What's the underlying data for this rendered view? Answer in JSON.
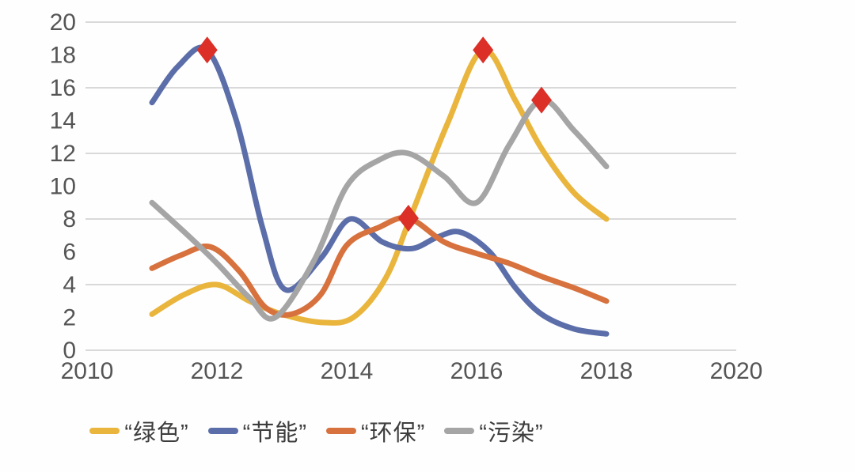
{
  "chart_data": {
    "type": "line",
    "xlim": [
      2010,
      2020
    ],
    "ylim": [
      0,
      20
    ],
    "x_ticks": [
      2010,
      2012,
      2014,
      2016,
      2018,
      2020
    ],
    "y_ticks": [
      0,
      2,
      4,
      6,
      8,
      10,
      12,
      14,
      16,
      18,
      20
    ],
    "gridline_values": [
      0,
      4,
      8,
      12,
      16,
      20
    ],
    "grid": "horizontal-only",
    "legend_position": "bottom",
    "series": [
      {
        "name": "“绿色”",
        "color": "#E9B53C",
        "points": [
          [
            2011,
            2.2
          ],
          [
            2011.5,
            3.4
          ],
          [
            2012,
            4.0
          ],
          [
            2012.5,
            3.0
          ],
          [
            2013,
            2.2
          ],
          [
            2013.6,
            1.7
          ],
          [
            2014.1,
            2.0
          ],
          [
            2014.6,
            4.4
          ],
          [
            2015,
            8.3
          ],
          [
            2015.55,
            13.8
          ],
          [
            2016.1,
            18.3
          ],
          [
            2016.6,
            15.2
          ],
          [
            2017,
            12.3
          ],
          [
            2017.5,
            9.6
          ],
          [
            2018,
            8.0
          ]
        ]
      },
      {
        "name": "“节能”",
        "color": "#5B6EA9",
        "points": [
          [
            2011,
            15.1
          ],
          [
            2011.4,
            17.3
          ],
          [
            2011.85,
            18.3
          ],
          [
            2012.3,
            14.0
          ],
          [
            2012.7,
            7.5
          ],
          [
            2013.05,
            3.7
          ],
          [
            2013.6,
            5.6
          ],
          [
            2014.05,
            8.0
          ],
          [
            2014.55,
            6.6
          ],
          [
            2015,
            6.2
          ],
          [
            2015.4,
            6.9
          ],
          [
            2015.75,
            7.2
          ],
          [
            2016.2,
            6.0
          ],
          [
            2016.6,
            3.8
          ],
          [
            2017,
            2.2
          ],
          [
            2017.5,
            1.3
          ],
          [
            2018,
            1.0
          ]
        ]
      },
      {
        "name": "“环保”",
        "color": "#D7713D",
        "points": [
          [
            2011,
            5.0
          ],
          [
            2011.45,
            5.8
          ],
          [
            2011.9,
            6.3
          ],
          [
            2012.35,
            4.8
          ],
          [
            2012.75,
            2.6
          ],
          [
            2013.15,
            2.2
          ],
          [
            2013.6,
            3.4
          ],
          [
            2014,
            6.4
          ],
          [
            2014.5,
            7.5
          ],
          [
            2014.95,
            8.05
          ],
          [
            2015.5,
            6.6
          ],
          [
            2016,
            5.9
          ],
          [
            2016.5,
            5.3
          ],
          [
            2017,
            4.5
          ],
          [
            2017.5,
            3.8
          ],
          [
            2018,
            3.0
          ]
        ]
      },
      {
        "name": "“污染”",
        "color": "#A5A5A5",
        "points": [
          [
            2011,
            9.0
          ],
          [
            2011.5,
            7.2
          ],
          [
            2012,
            5.3
          ],
          [
            2012.5,
            3.2
          ],
          [
            2012.9,
            2.0
          ],
          [
            2013.5,
            5.5
          ],
          [
            2014,
            10.0
          ],
          [
            2014.5,
            11.6
          ],
          [
            2014.95,
            12.0
          ],
          [
            2015.5,
            10.6
          ],
          [
            2016,
            9.0
          ],
          [
            2016.5,
            12.5
          ],
          [
            2017,
            15.25
          ],
          [
            2017.5,
            13.4
          ],
          [
            2018,
            11.2
          ]
        ]
      }
    ],
    "markers": {
      "shape": "diamond",
      "color": "#DB2F27",
      "points": [
        {
          "series": 1,
          "x": 2011.85,
          "y": 18.3
        },
        {
          "series": 2,
          "x": 2014.95,
          "y": 8.05
        },
        {
          "series": 0,
          "x": 2016.1,
          "y": 18.3
        },
        {
          "series": 3,
          "x": 2017.0,
          "y": 15.25
        }
      ]
    }
  },
  "colors": {
    "background": "#FEFEFE",
    "gridline": "#D9D9D9",
    "axis_text": "#555555",
    "legend_text": "#3D3D3D"
  }
}
